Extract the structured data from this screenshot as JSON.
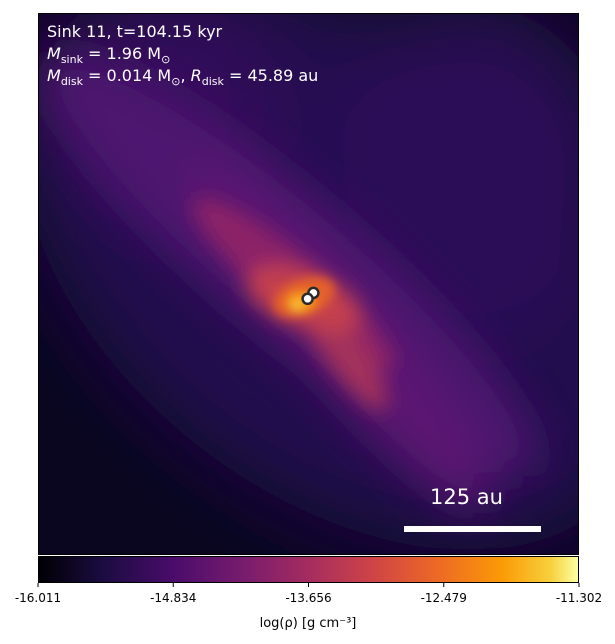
{
  "chart_data": {
    "type": "heatmap",
    "colormap": "inferno",
    "annotations": {
      "line1": "Sink 11, t=104.15 kyr",
      "sink_mass": {
        "label": "M",
        "sub": "sink",
        "value": "= 1.96 M",
        "unit_sub": "⊙"
      },
      "disk": {
        "label": "M",
        "sub": "disk",
        "value": "= 0.014 M",
        "unit_sub": "⊙",
        "sep": ", ",
        "r_label": "R",
        "r_sub": "disk",
        "r_value": "= 45.89 au"
      }
    },
    "scale_bar": {
      "label": "125 au",
      "length": 125,
      "unit": "au"
    },
    "colorbar": {
      "ticks": [
        "-16.011",
        "-14.834",
        "-13.656",
        "-12.479",
        "-11.302"
      ],
      "min": -16.011,
      "max": -11.302,
      "label": "log(ρ) [g cm⁻³]"
    },
    "sinks": [
      {
        "x": 0.08,
        "y": 0.02
      },
      {
        "x": -0.04,
        "y": -0.02
      }
    ]
  }
}
